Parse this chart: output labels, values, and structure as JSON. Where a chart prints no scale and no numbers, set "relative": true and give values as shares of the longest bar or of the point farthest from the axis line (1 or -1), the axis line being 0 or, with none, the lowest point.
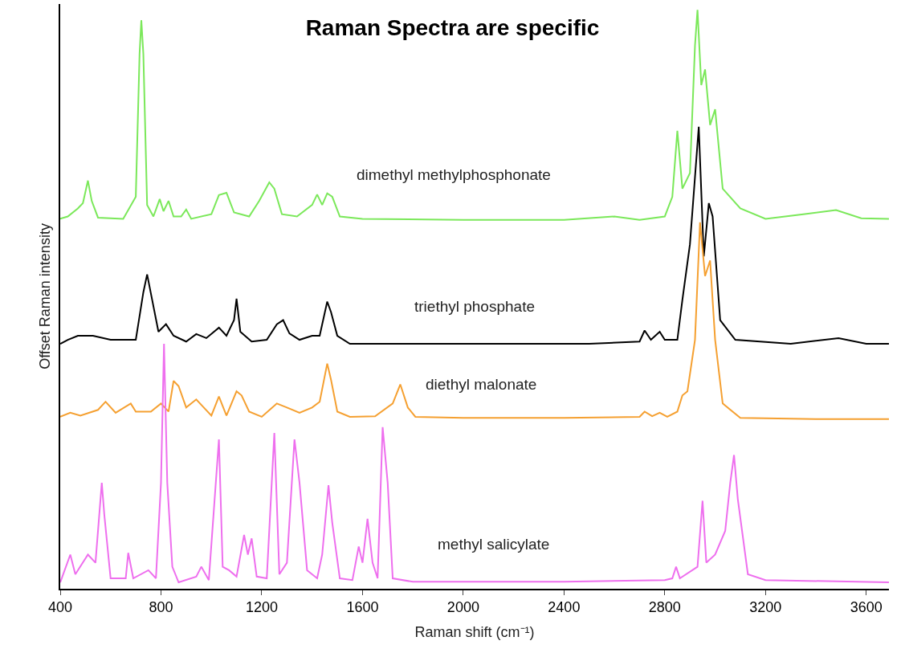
{
  "chart_data": {
    "type": "line",
    "title": "Raman Spectra are specific",
    "xlabel": "Raman shift (cm⁻¹)",
    "ylabel": "Offset Raman intensity",
    "relative": true,
    "legend": false,
    "marker": "none",
    "line_style": "solid",
    "xlim": [
      400,
      3690
    ],
    "xticks": [
      400,
      800,
      1200,
      1600,
      2000,
      2400,
      2800,
      3200,
      3600
    ],
    "series": [
      {
        "name": "dimethyl methylphosphonate",
        "color": "#7be85a",
        "x": [
          400,
          430,
          470,
          490,
          510,
          525,
          550,
          650,
          700,
          715,
          722,
          730,
          745,
          770,
          795,
          810,
          830,
          850,
          880,
          900,
          920,
          1000,
          1030,
          1060,
          1090,
          1150,
          1190,
          1230,
          1250,
          1280,
          1340,
          1400,
          1420,
          1440,
          1460,
          1480,
          1510,
          1600,
          2000,
          2400,
          2600,
          2700,
          2800,
          2830,
          2850,
          2870,
          2900,
          2920,
          2930,
          2945,
          2960,
          2980,
          3000,
          3030,
          3100,
          3200,
          3350,
          3480,
          3580,
          3690
        ],
        "values": [
          0.639,
          0.643,
          0.657,
          0.666,
          0.705,
          0.67,
          0.641,
          0.639,
          0.677,
          0.924,
          0.982,
          0.924,
          0.663,
          0.643,
          0.673,
          0.652,
          0.67,
          0.643,
          0.643,
          0.655,
          0.639,
          0.647,
          0.68,
          0.684,
          0.65,
          0.643,
          0.67,
          0.702,
          0.691,
          0.647,
          0.643,
          0.663,
          0.681,
          0.663,
          0.683,
          0.677,
          0.643,
          0.639,
          0.637,
          0.637,
          0.643,
          0.637,
          0.643,
          0.677,
          0.791,
          0.691,
          0.718,
          0.938,
          1.0,
          0.87,
          0.897,
          0.801,
          0.828,
          0.691,
          0.657,
          0.639,
          0.647,
          0.654,
          0.64,
          0.639
        ]
      },
      {
        "name": "triethyl phosphate",
        "color": "#000000",
        "x": [
          400,
          430,
          470,
          530,
          600,
          700,
          730,
          745,
          765,
          790,
          820,
          850,
          900,
          940,
          980,
          1030,
          1060,
          1090,
          1100,
          1115,
          1160,
          1220,
          1260,
          1285,
          1310,
          1350,
          1400,
          1430,
          1460,
          1475,
          1500,
          1550,
          2000,
          2500,
          2700,
          2720,
          2745,
          2780,
          2800,
          2850,
          2870,
          2900,
          2935,
          2955,
          2975,
          2990,
          3020,
          3080,
          3300,
          3490,
          3600,
          3690
        ],
        "values": [
          0.423,
          0.43,
          0.437,
          0.437,
          0.43,
          0.43,
          0.512,
          0.543,
          0.499,
          0.444,
          0.457,
          0.437,
          0.427,
          0.44,
          0.433,
          0.451,
          0.437,
          0.464,
          0.501,
          0.444,
          0.427,
          0.43,
          0.457,
          0.464,
          0.441,
          0.43,
          0.437,
          0.437,
          0.496,
          0.478,
          0.437,
          0.423,
          0.423,
          0.423,
          0.427,
          0.446,
          0.43,
          0.444,
          0.43,
          0.43,
          0.499,
          0.595,
          0.798,
          0.574,
          0.666,
          0.643,
          0.464,
          0.43,
          0.423,
          0.433,
          0.423,
          0.423
        ]
      },
      {
        "name": "diethyl malonate",
        "color": "#f5a031",
        "x": [
          400,
          440,
          480,
          550,
          580,
          620,
          680,
          700,
          760,
          800,
          830,
          850,
          870,
          900,
          940,
          970,
          1000,
          1030,
          1060,
          1100,
          1120,
          1150,
          1200,
          1260,
          1300,
          1350,
          1400,
          1430,
          1460,
          1475,
          1500,
          1550,
          1650,
          1720,
          1750,
          1780,
          1810,
          2000,
          2400,
          2700,
          2720,
          2750,
          2780,
          2810,
          2850,
          2870,
          2890,
          2920,
          2940,
          2960,
          2980,
          3000,
          3030,
          3100,
          3400,
          3690
        ],
        "values": [
          0.297,
          0.304,
          0.299,
          0.309,
          0.323,
          0.304,
          0.32,
          0.306,
          0.306,
          0.32,
          0.306,
          0.359,
          0.35,
          0.313,
          0.327,
          0.313,
          0.299,
          0.332,
          0.299,
          0.341,
          0.334,
          0.306,
          0.297,
          0.32,
          0.313,
          0.304,
          0.313,
          0.323,
          0.389,
          0.361,
          0.306,
          0.297,
          0.298,
          0.32,
          0.353,
          0.313,
          0.297,
          0.295,
          0.295,
          0.297,
          0.306,
          0.298,
          0.304,
          0.297,
          0.306,
          0.334,
          0.341,
          0.43,
          0.633,
          0.54,
          0.567,
          0.43,
          0.32,
          0.295,
          0.293,
          0.293
        ]
      },
      {
        "name": "methyl salicylate",
        "color": "#ee6fee",
        "x": [
          400,
          440,
          460,
          510,
          540,
          565,
          575,
          600,
          660,
          670,
          690,
          750,
          780,
          800,
          812,
          825,
          845,
          870,
          940,
          960,
          990,
          1030,
          1045,
          1070,
          1100,
          1130,
          1145,
          1160,
          1180,
          1220,
          1250,
          1270,
          1300,
          1330,
          1350,
          1380,
          1420,
          1440,
          1465,
          1480,
          1510,
          1560,
          1585,
          1600,
          1620,
          1640,
          1660,
          1680,
          1700,
          1720,
          1800,
          2400,
          2800,
          2830,
          2845,
          2860,
          2930,
          2950,
          2965,
          3000,
          3040,
          3060,
          3075,
          3090,
          3130,
          3200,
          3690
        ],
        "values": [
          0.011,
          0.059,
          0.025,
          0.059,
          0.045,
          0.183,
          0.128,
          0.018,
          0.018,
          0.062,
          0.018,
          0.032,
          0.018,
          0.183,
          0.423,
          0.183,
          0.038,
          0.011,
          0.021,
          0.038,
          0.015,
          0.258,
          0.038,
          0.032,
          0.021,
          0.093,
          0.059,
          0.087,
          0.021,
          0.018,
          0.269,
          0.025,
          0.045,
          0.258,
          0.183,
          0.032,
          0.018,
          0.059,
          0.179,
          0.114,
          0.018,
          0.015,
          0.073,
          0.045,
          0.121,
          0.045,
          0.018,
          0.279,
          0.183,
          0.018,
          0.012,
          0.012,
          0.015,
          0.018,
          0.038,
          0.018,
          0.038,
          0.152,
          0.045,
          0.059,
          0.1,
          0.183,
          0.231,
          0.155,
          0.025,
          0.015,
          0.011
        ]
      }
    ]
  }
}
